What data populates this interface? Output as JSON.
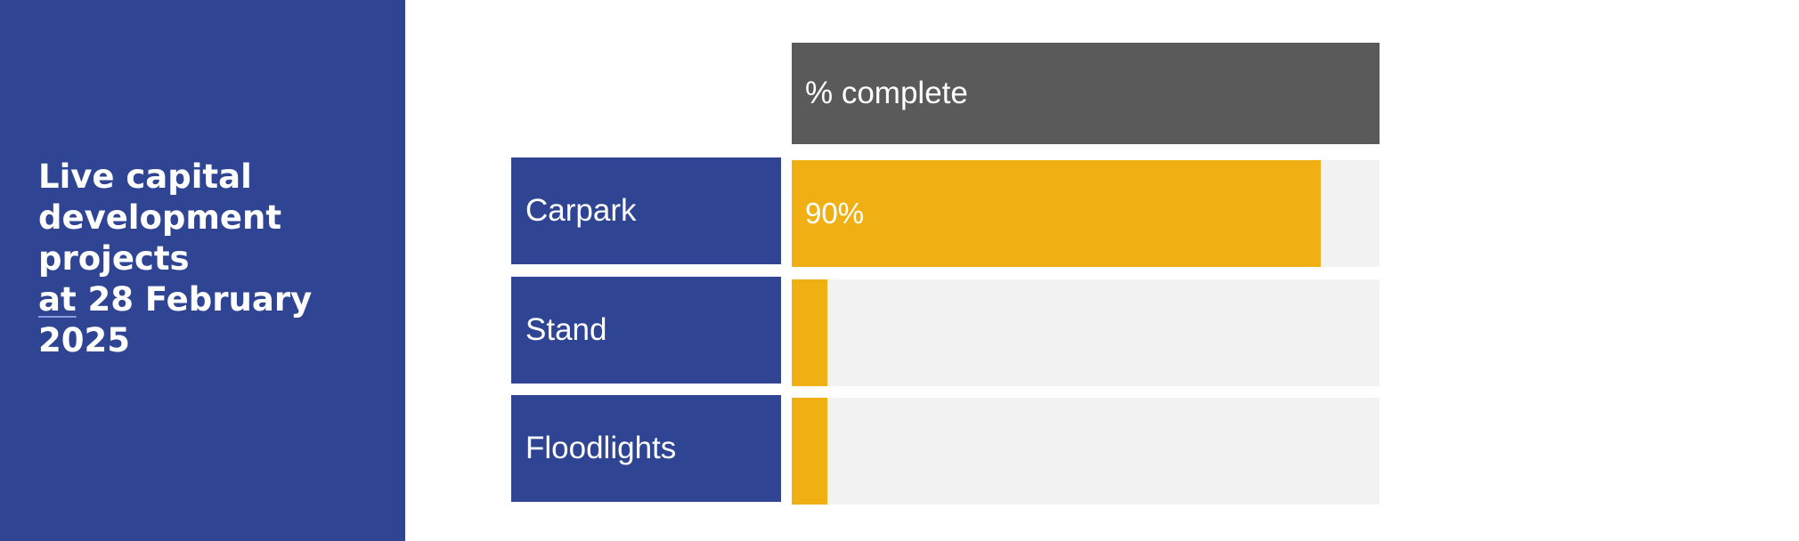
{
  "side_panel": {
    "title_lines": [
      "Live capital",
      "development",
      "projects"
    ],
    "date_prefix": "at",
    "date_rest": " 28 February",
    "date_year": "2025",
    "color": "#2f4594"
  },
  "colors": {
    "header": "#5a5a5a",
    "label_box": "#2f4594",
    "bar": "#f0b013",
    "track": "#f2f2f2",
    "text": "#ffffff"
  },
  "chart_data": {
    "type": "bar",
    "orientation": "horizontal",
    "header": "% complete",
    "categories": [
      "Carpark",
      "Stand",
      "Floodlights"
    ],
    "values": [
      90,
      6,
      6
    ],
    "value_labels": [
      "90%",
      "",
      ""
    ],
    "xlim": [
      0,
      100
    ],
    "grid": false
  }
}
